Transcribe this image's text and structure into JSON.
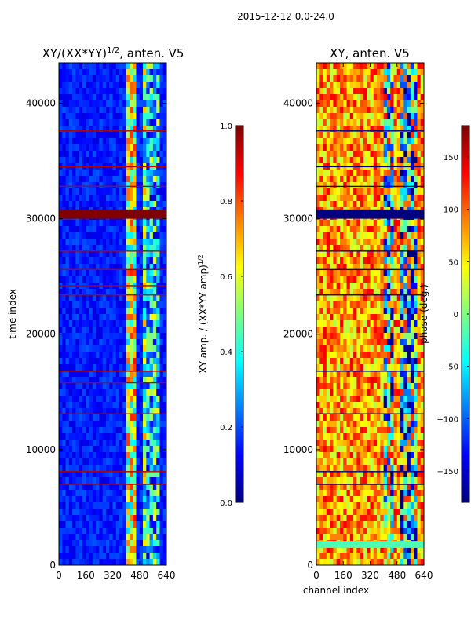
{
  "figure": {
    "suptitle": "2015-12-12 0.0-24.0"
  },
  "colors": {
    "jet": [
      "#00007f",
      "#0000ff",
      "#007fff",
      "#00ffff",
      "#7fff7f",
      "#ffff00",
      "#ff7f00",
      "#ff0000",
      "#7f0000"
    ],
    "axis": "#000000"
  },
  "chart_data": [
    {
      "type": "heatmap",
      "title": "XY/(XX*YY)^{1/2}, anten. V5",
      "title_main": "XY/(XX*YY)",
      "title_exp": "1/2",
      "title_tail": ", anten. V5",
      "xlabel": "",
      "ylabel": "time index",
      "xlim": [
        0,
        640
      ],
      "ylim": [
        0,
        43500
      ],
      "xticks": [
        0,
        160,
        320,
        480,
        640
      ],
      "yticks": [
        0,
        10000,
        20000,
        30000,
        40000
      ],
      "colormap": "jet",
      "colorbar": {
        "label": "XY amp. / (XX*YY amp)^{1/2}",
        "label_main": "XY amp. / (XX*YY amp)",
        "label_exp": "1/2",
        "vmin": 0.0,
        "vmax": 1.0,
        "ticks": [
          "0.0",
          "0.2",
          "0.4",
          "0.6",
          "0.8",
          "1.0"
        ]
      },
      "background_level": 0.15,
      "bright_channel_bands": [
        {
          "x0": 395,
          "x1": 420,
          "level": 0.55
        },
        {
          "x0": 430,
          "x1": 465,
          "level": 0.6
        },
        {
          "x0": 495,
          "x1": 520,
          "level": 0.45
        },
        {
          "x0": 530,
          "x1": 600,
          "level": 0.35
        }
      ],
      "flagged_rows": [
        {
          "y0": 30000,
          "y1": 30800,
          "level": 1.0
        },
        {
          "y": 37600,
          "level": 0.95
        },
        {
          "y": 34500,
          "level": 0.95
        },
        {
          "y": 32800,
          "level": 0.95
        },
        {
          "y": 27200,
          "level": 0.95
        },
        {
          "y": 25600,
          "level": 0.95
        },
        {
          "y": 24200,
          "level": 0.95
        },
        {
          "y": 23400,
          "level": 0.95
        },
        {
          "y": 16800,
          "level": 0.95
        },
        {
          "y": 15800,
          "level": 0.95
        },
        {
          "y": 13100,
          "level": 0.95
        },
        {
          "y": 8100,
          "level": 0.95
        },
        {
          "y": 7000,
          "level": 0.95
        }
      ]
    },
    {
      "type": "heatmap",
      "title": "XY, anten. V5",
      "xlabel": "channel index",
      "ylabel": "",
      "xlim": [
        0,
        640
      ],
      "ylim": [
        0,
        43500
      ],
      "xticks": [
        0,
        160,
        320,
        480,
        640
      ],
      "yticks": [
        0,
        10000,
        20000,
        30000,
        40000
      ],
      "colormap": "jet",
      "colorbar": {
        "label": "phase (deg.)",
        "vmin": -180,
        "vmax": 180,
        "ticks": [
          "−150",
          "−100",
          "−50",
          "0",
          "50",
          "100",
          "150"
        ],
        "tick_values": [
          -150,
          -100,
          -50,
          0,
          50,
          100,
          150
        ]
      },
      "background_level": 0.72,
      "bright_channel_bands": [
        {
          "x0": 395,
          "x1": 465,
          "level": 0.45
        },
        {
          "x0": 495,
          "x1": 600,
          "level": 0.4
        }
      ],
      "flagged_rows": [
        {
          "y0": 30000,
          "y1": 30800,
          "level": 0.0
        },
        {
          "y": 37600,
          "level": 0.0
        },
        {
          "y": 34500,
          "level": 0.0
        },
        {
          "y": 32800,
          "level": 0.0
        },
        {
          "y": 27200,
          "level": 0.0
        },
        {
          "y": 25600,
          "level": 0.0
        },
        {
          "y": 23400,
          "level": 0.0
        },
        {
          "y": 16800,
          "level": 0.0
        },
        {
          "y": 13100,
          "level": 0.0
        },
        {
          "y": 8100,
          "level": 0.0
        },
        {
          "y": 7000,
          "level": 0.0
        },
        {
          "y0": 1500,
          "y1": 2100,
          "level": 0.45
        }
      ]
    }
  ]
}
